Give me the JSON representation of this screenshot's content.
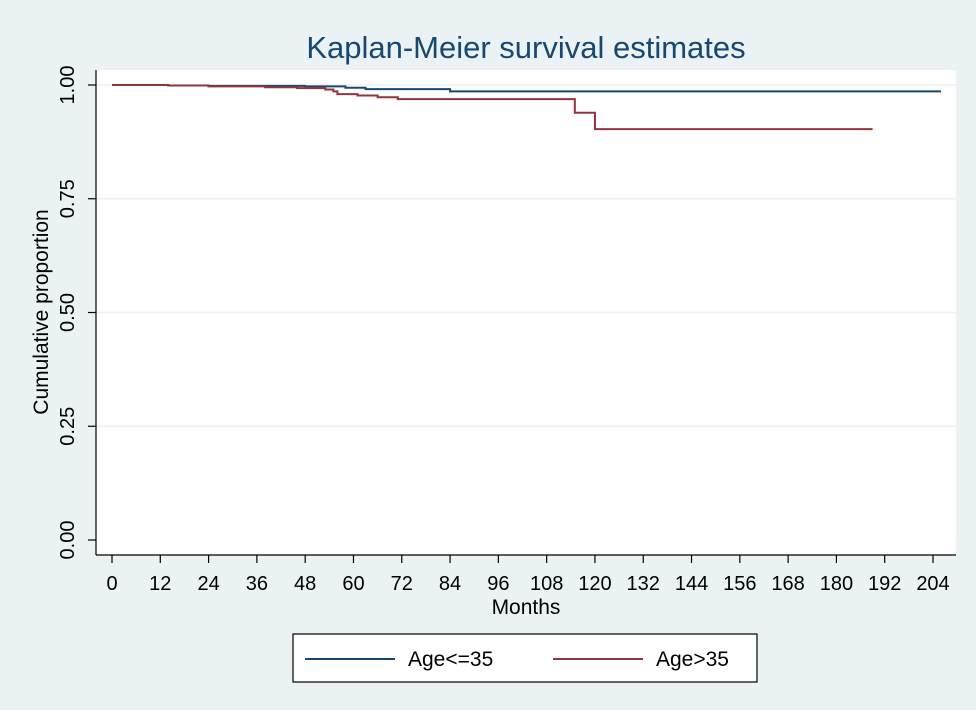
{
  "chart_data": {
    "type": "line",
    "title": "Kaplan-Meier survival estimates",
    "xlabel": "Months",
    "ylabel": "Cumulative proportion",
    "xlim": [
      0,
      206
    ],
    "ylim": [
      0,
      1
    ],
    "xticks": [
      0,
      12,
      24,
      36,
      48,
      60,
      72,
      84,
      96,
      108,
      120,
      132,
      144,
      156,
      168,
      180,
      192,
      204
    ],
    "yticks": [
      0,
      0.25,
      0.5,
      0.75,
      1
    ],
    "ytick_labels": [
      "0.00",
      "0.25",
      "0.50",
      "0.75",
      "1.00"
    ],
    "grid": "horizontal",
    "legend_position": "bottom",
    "series": [
      {
        "name": "Age<=35",
        "color": "#1a476f",
        "step": true,
        "x": [
          0,
          14,
          24,
          48,
          58,
          63,
          84,
          206
        ],
        "y": [
          1.0,
          0.999,
          0.998,
          0.997,
          0.994,
          0.991,
          0.986,
          0.986
        ]
      },
      {
        "name": "Age>35",
        "color": "#90353b",
        "step": true,
        "x": [
          0,
          14,
          24,
          38,
          46,
          53,
          55,
          56,
          61,
          66,
          71,
          115,
          120,
          189
        ],
        "y": [
          1.0,
          0.999,
          0.997,
          0.995,
          0.993,
          0.99,
          0.986,
          0.98,
          0.977,
          0.973,
          0.969,
          0.939,
          0.903,
          0.903
        ]
      }
    ]
  }
}
